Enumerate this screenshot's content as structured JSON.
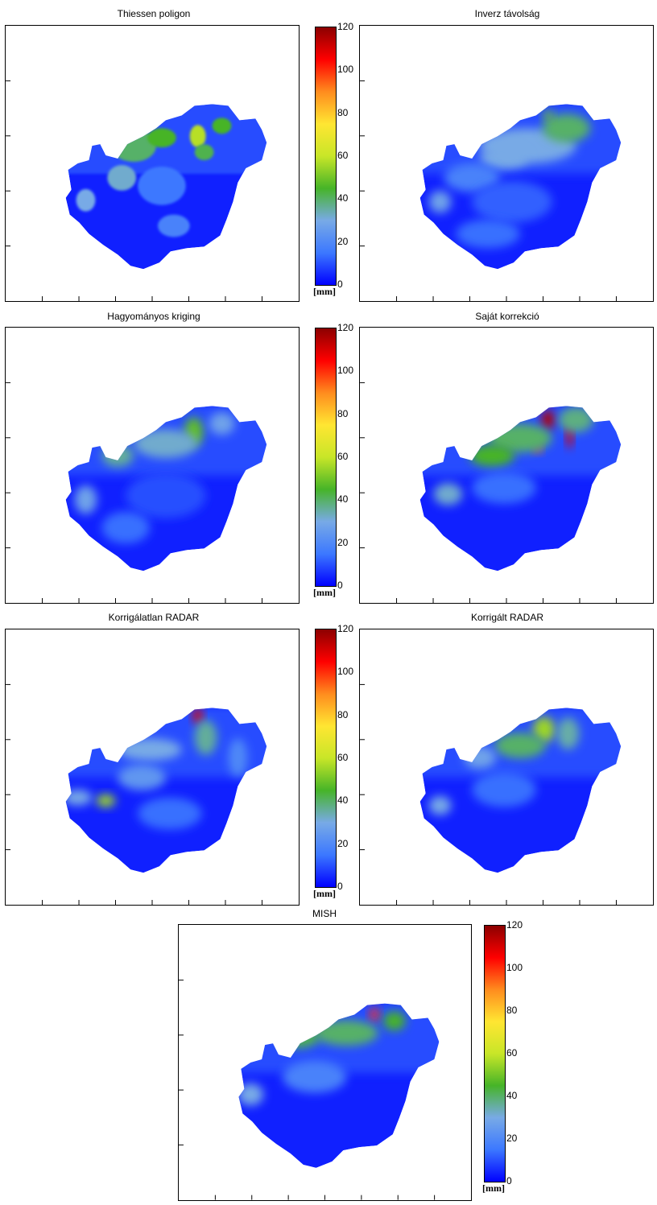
{
  "colorbar": {
    "ticks": [
      "0",
      "20",
      "40",
      "60",
      "80",
      "100",
      "120"
    ],
    "unit": "[mm]",
    "min": 0,
    "max": 120,
    "gradient": [
      "#0000ff",
      "#3c78ff",
      "#78aae6",
      "#46b428",
      "#c8e628",
      "#ffe632",
      "#ff8c1e",
      "#ff0000",
      "#8c0000"
    ]
  },
  "colors": {
    "background": "#ffffff",
    "outside_map": "#ffffff",
    "axes": "#000000"
  },
  "chart_data": [
    {
      "type": "heatmap",
      "title": "Thiessen poligon",
      "variable": "precipitation",
      "unit": "mm",
      "clim": [
        0,
        120
      ],
      "dominant_value_range": [
        0,
        60
      ],
      "peak_value": 60,
      "grid": false
    },
    {
      "type": "heatmap",
      "title": "Inverz távolság",
      "variable": "precipitation",
      "unit": "mm",
      "clim": [
        0,
        120
      ],
      "dominant_value_range": [
        0,
        45
      ],
      "peak_value": 50,
      "grid": false
    },
    {
      "type": "heatmap",
      "title": "Hagyományos kriging",
      "variable": "precipitation",
      "unit": "mm",
      "clim": [
        0,
        120
      ],
      "dominant_value_range": [
        0,
        40
      ],
      "peak_value": 50,
      "grid": false
    },
    {
      "type": "heatmap",
      "title": "Saját korrekció",
      "variable": "precipitation",
      "unit": "mm",
      "clim": [
        0,
        120
      ],
      "dominant_value_range": [
        0,
        60
      ],
      "peak_value": 115,
      "grid": false
    },
    {
      "type": "heatmap",
      "title": "Korrigálatlan RADAR",
      "variable": "precipitation",
      "unit": "mm",
      "clim": [
        0,
        120
      ],
      "dominant_value_range": [
        0,
        40
      ],
      "peak_value": 110,
      "grid": false
    },
    {
      "type": "heatmap",
      "title": "Korrigált RADAR",
      "variable": "precipitation",
      "unit": "mm",
      "clim": [
        0,
        120
      ],
      "dominant_value_range": [
        0,
        45
      ],
      "peak_value": 60,
      "grid": false
    },
    {
      "type": "heatmap",
      "title": "MISH",
      "variable": "precipitation",
      "unit": "mm",
      "clim": [
        0,
        120
      ],
      "dominant_value_range": [
        0,
        50
      ],
      "peak_value": 100,
      "grid": false
    }
  ]
}
